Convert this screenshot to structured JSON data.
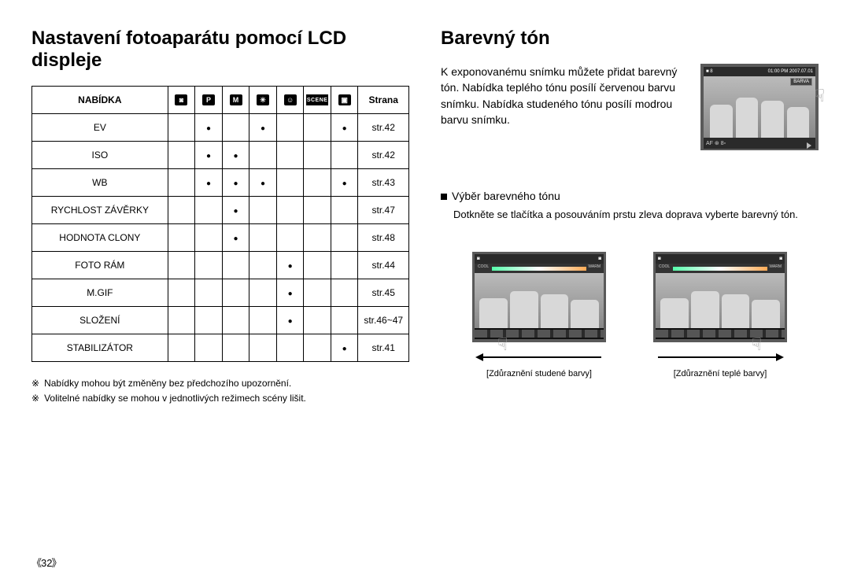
{
  "left": {
    "title": "Nastavení fotoaparátu pomocí LCD displeje",
    "header": {
      "menu": "NABÍDKA",
      "page": "Strana"
    },
    "modes": [
      "auto",
      "program",
      "manual",
      "asr",
      "portrait",
      "scene",
      "movie"
    ],
    "mode_glyph": {
      "auto": "□",
      "program": "P",
      "manual": "M",
      "asr": "✳",
      "portrait": "☺",
      "scene": "SCENE",
      "movie": "▣"
    },
    "rows": [
      {
        "label": "EV",
        "dots": [
          0,
          1,
          0,
          1,
          0,
          0,
          1
        ],
        "page": "str.42"
      },
      {
        "label": "ISO",
        "dots": [
          0,
          1,
          1,
          0,
          0,
          0,
          0
        ],
        "page": "str.42"
      },
      {
        "label": "WB",
        "dots": [
          0,
          1,
          1,
          1,
          0,
          0,
          1
        ],
        "page": "str.43"
      },
      {
        "label": "RYCHLOST ZÁVĚRKY",
        "dots": [
          0,
          0,
          1,
          0,
          0,
          0,
          0
        ],
        "page": "str.47"
      },
      {
        "label": "HODNOTA CLONY",
        "dots": [
          0,
          0,
          1,
          0,
          0,
          0,
          0
        ],
        "page": "str.48"
      },
      {
        "label": "FOTO RÁM",
        "dots": [
          0,
          0,
          0,
          0,
          1,
          0,
          0
        ],
        "page": "str.44"
      },
      {
        "label": "M.GIF",
        "dots": [
          0,
          0,
          0,
          0,
          1,
          0,
          0
        ],
        "page": "str.45"
      },
      {
        "label": "SLOŽENÍ",
        "dots": [
          0,
          0,
          0,
          0,
          1,
          0,
          0
        ],
        "page": "str.46~47"
      },
      {
        "label": "STABILIZÁTOR",
        "dots": [
          0,
          0,
          0,
          0,
          0,
          0,
          1
        ],
        "page": "str.41"
      }
    ],
    "notes": [
      "Nabídky mohou být změněny bez předchozího upozornění.",
      "Volitelné nabídky se mohou v jednotlivých režimech scény lišit."
    ],
    "note_symbol": "※"
  },
  "right": {
    "title": "Barevný tón",
    "intro": "K exponovanému snímku můžete přidat barevný tón. Nabídka teplého tónu posílí červenou barvu snímku. Nabídka studeného tónu posílí modrou barvu snímku.",
    "section_label": "Výběr barevného tónu",
    "section_desc": "Dotkněte se tlačítka a posouváním prstu zleva doprava vyberte barevný tón.",
    "lcd": {
      "topbar_left": "■ 8",
      "topbar_right": "01:00 PM 2007.07.01",
      "badge": "BARVA",
      "status_left": "AF  ⊛  8▫",
      "slider_left": "COOL",
      "slider_right": "WARM"
    },
    "captions": {
      "cold": "[Zdůraznění studené barvy]",
      "warm": "[Zdůraznění teplé barvy]"
    }
  },
  "pagenum": "32"
}
